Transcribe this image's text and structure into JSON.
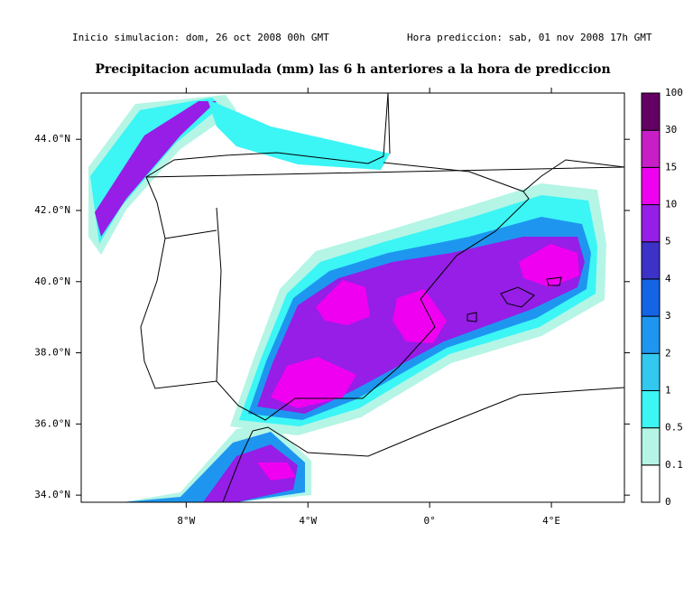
{
  "header": {
    "left": "Inicio simulacion: dom, 26 oct 2008 00h GMT",
    "right": "Hora prediccion: sab, 01 nov 2008 17h GMT"
  },
  "map": {
    "title": "Precipitacion acumulada (mm) las 6 h anteriores a la hora de prediccion",
    "xlim": [
      -11.45,
      6.4
    ],
    "ylim": [
      33.8,
      45.3
    ],
    "xticks": [
      {
        "value": -8,
        "label": "8°W"
      },
      {
        "value": -4,
        "label": "4°W"
      },
      {
        "value": 0,
        "label": "0°"
      },
      {
        "value": 4,
        "label": "4°E"
      }
    ],
    "yticks": [
      {
        "value": 34,
        "label": "34.0°N"
      },
      {
        "value": 36,
        "label": "36.0°N"
      },
      {
        "value": 38,
        "label": "38.0°N"
      },
      {
        "value": 40,
        "label": "40.0°N"
      },
      {
        "value": 42,
        "label": "42.0°N"
      },
      {
        "value": 44,
        "label": "44.0°N"
      }
    ],
    "colorbar": {
      "levels": [
        0,
        0.1,
        0.5,
        1,
        2,
        3,
        4,
        5,
        10,
        15,
        30,
        100
      ],
      "colors": [
        "#ffffff",
        "#b4f5e6",
        "#3cf5f5",
        "#32c8f0",
        "#1e96f0",
        "#1464e6",
        "#3c32c8",
        "#961ee6",
        "#f000f0",
        "#c81ec8",
        "#640064"
      ]
    }
  }
}
